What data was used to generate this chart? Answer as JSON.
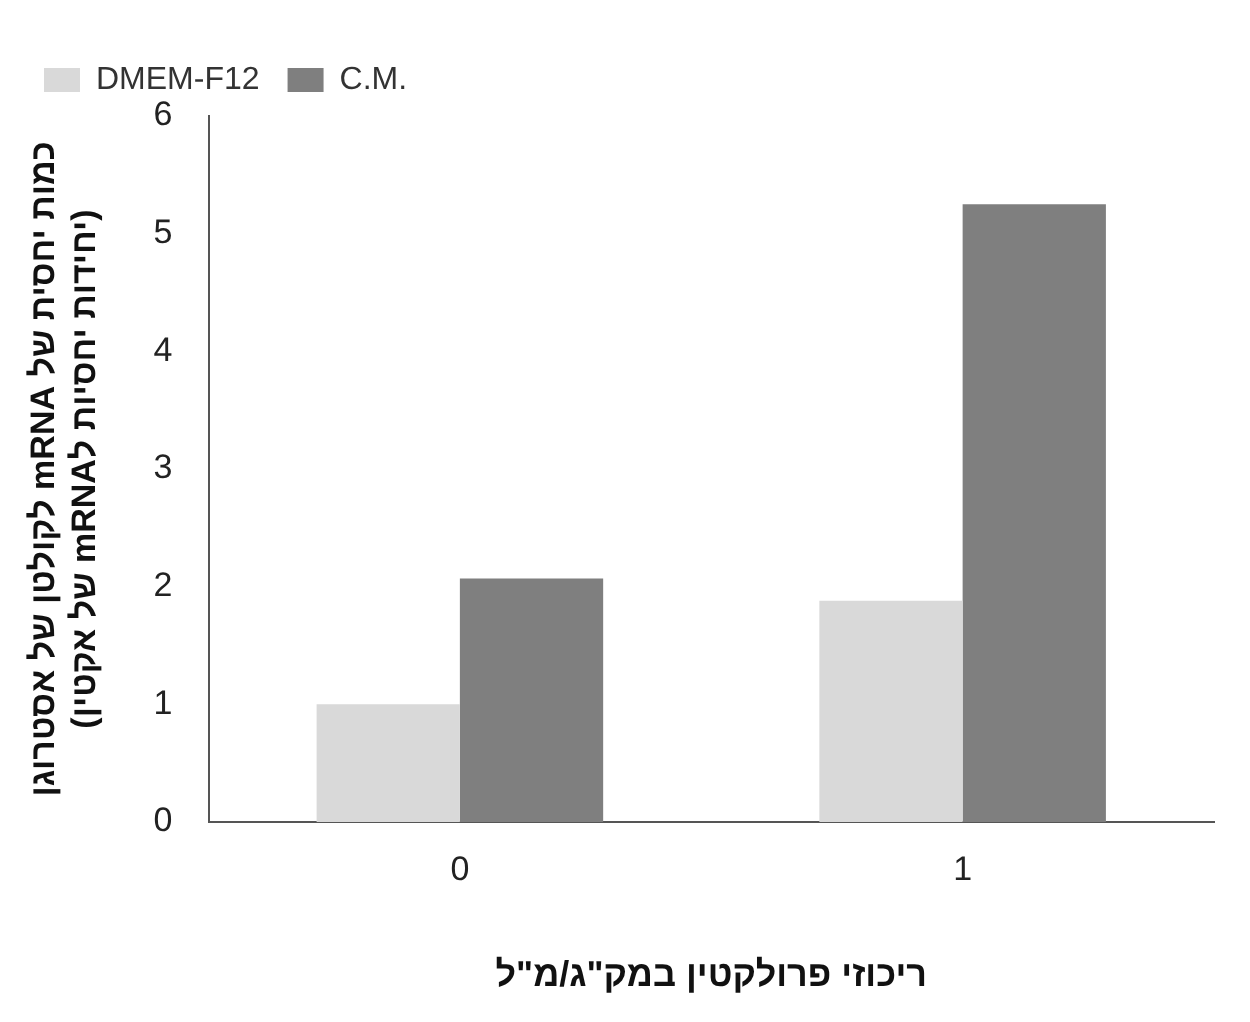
{
  "chart_data": {
    "type": "bar",
    "xlabel": "ריכוזי פרולקטין במק\"ג/מ\"ל",
    "ylabel": "כמות יחסית של mRNA לקולטן של אסטרוגן\n(יחידות יחסיות לmRNA של אקטין)",
    "categories": [
      "0",
      "1"
    ],
    "series": [
      {
        "name": "DMEM-F12",
        "color": "#d9d9d9",
        "values": [
          1.0,
          1.88
        ]
      },
      {
        "name": "C.M.",
        "color": "#7f7f7f",
        "values": [
          2.07,
          5.25
        ]
      }
    ],
    "ylim": [
      0,
      6
    ],
    "yticks": [
      0,
      1,
      2,
      3,
      4,
      5,
      6
    ],
    "grid": false,
    "legend": "top left"
  }
}
